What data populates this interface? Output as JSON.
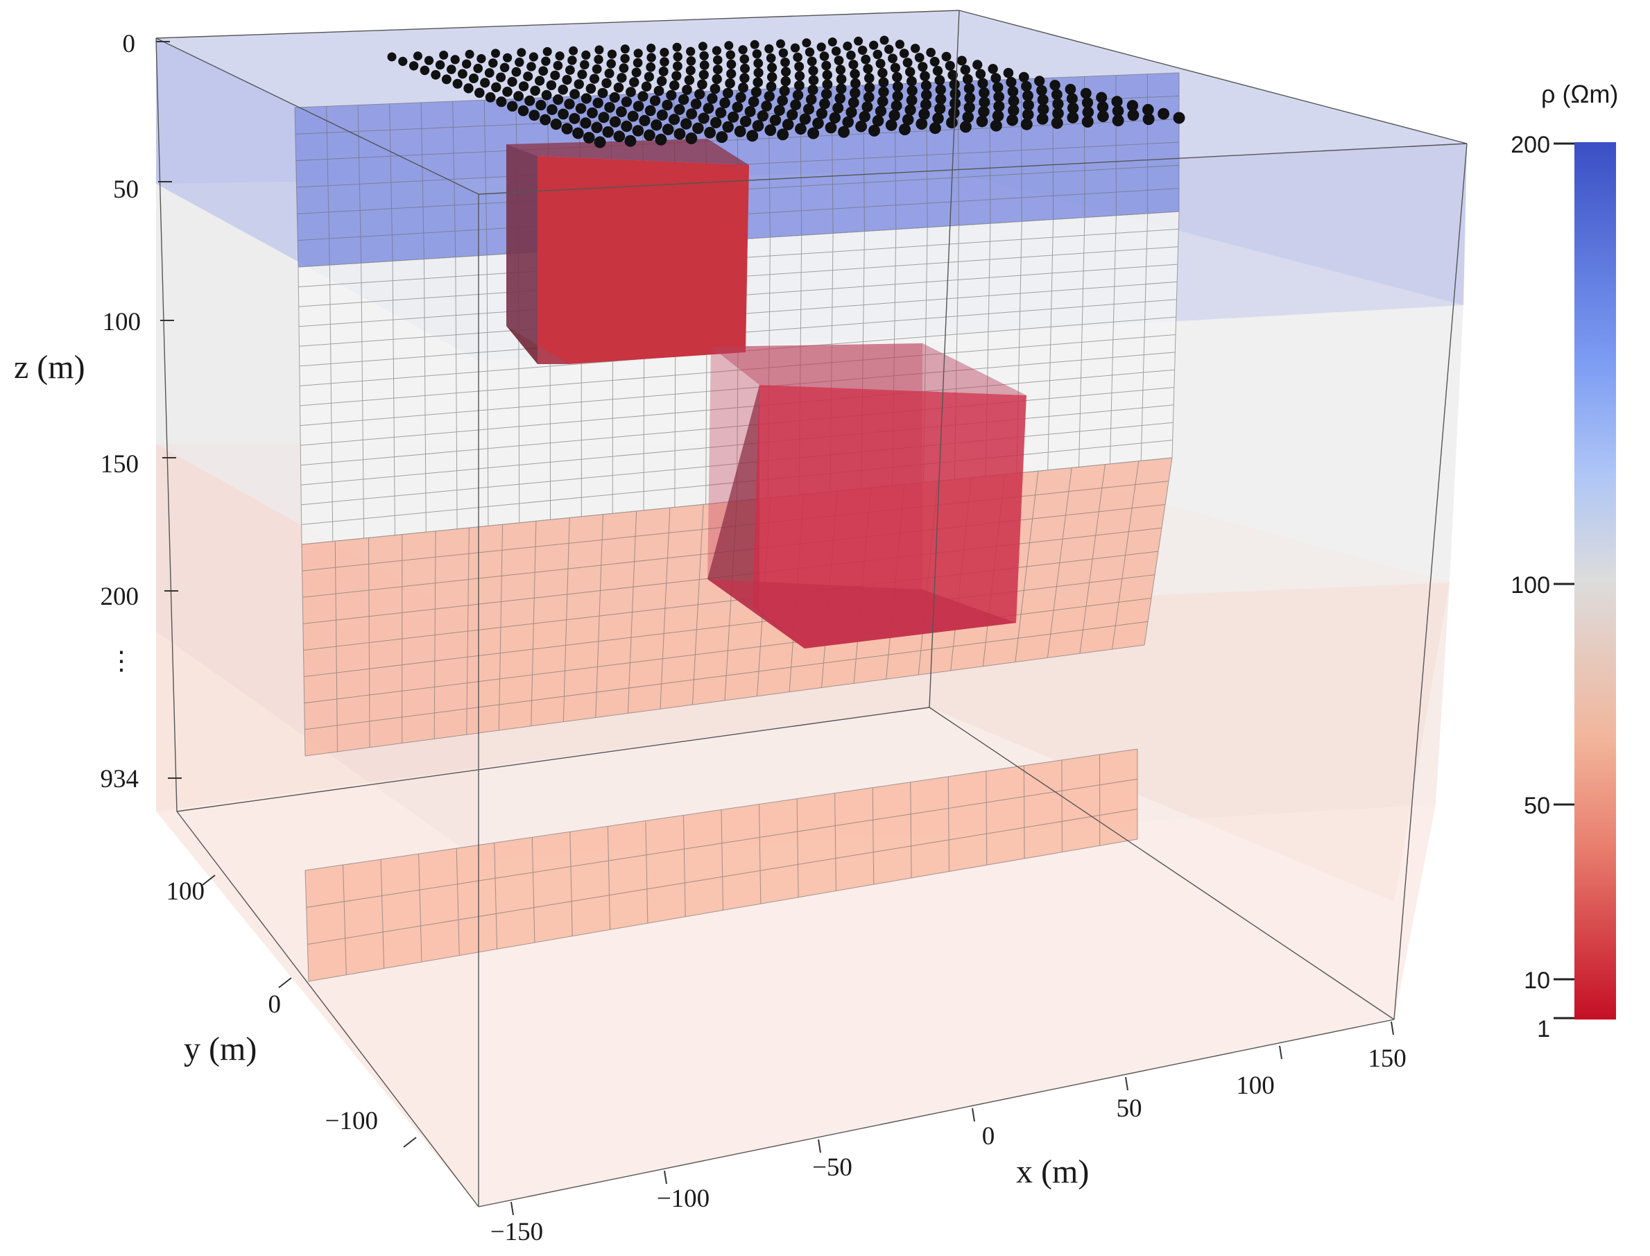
{
  "axes": {
    "z": {
      "title": "z (m)",
      "ticks": [
        "0",
        "50",
        "100",
        "150",
        "200",
        "⋮",
        "934"
      ]
    },
    "y": {
      "title": "y (m)",
      "ticks": [
        "100",
        "0",
        "−100"
      ]
    },
    "x": {
      "title": "x (m)",
      "ticks": [
        "−150",
        "−100",
        "−50",
        "0",
        "50",
        "100",
        "150"
      ]
    }
  },
  "colorbar": {
    "title": "ρ (Ωm)",
    "ticks": [
      "200",
      "100",
      "50",
      "10",
      "1"
    ],
    "colors": {
      "high": "#3a4fc4",
      "mid": "#dcdcdc",
      "low": "#c40f25"
    }
  },
  "layers": {
    "top_color": "#8090e0",
    "middle_color": "#f2f2f2",
    "lower_color": "#f8b8a0",
    "deep_color": "#f9c5b5",
    "block_color": "#c8303f"
  },
  "electrodes": {
    "rows": 20,
    "cols": 20,
    "color": "#111111"
  }
}
